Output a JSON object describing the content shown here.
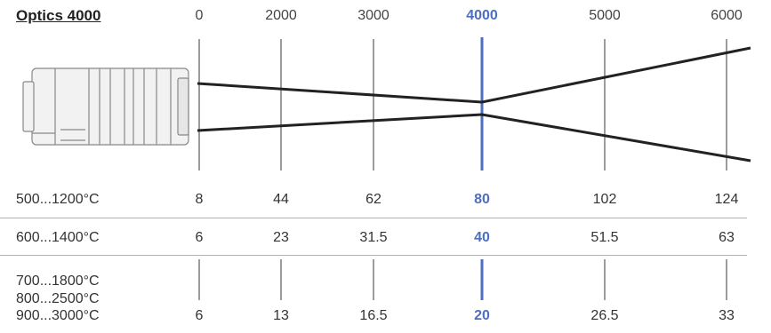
{
  "title": "Optics 4000",
  "distances": [
    "0",
    "2000",
    "3000",
    "4000",
    "5000",
    "6000"
  ],
  "highlight_index": 3,
  "colors": {
    "highlight": "#4d6fbf",
    "lines": "#222222",
    "text": "#333333"
  },
  "rows": [
    {
      "labels": [
        "500...1200°C"
      ],
      "values": [
        "8",
        "44",
        "62",
        "80",
        "102",
        "124"
      ]
    },
    {
      "labels": [
        "600...1400°C"
      ],
      "values": [
        "6",
        "23",
        "31.5",
        "40",
        "51.5",
        "63"
      ]
    },
    {
      "labels": [
        "700...1800°C",
        "800...2500°C",
        "900...3000°C"
      ],
      "values": [
        "6",
        "13",
        "16.5",
        "20",
        "26.5",
        "33"
      ]
    }
  ]
}
